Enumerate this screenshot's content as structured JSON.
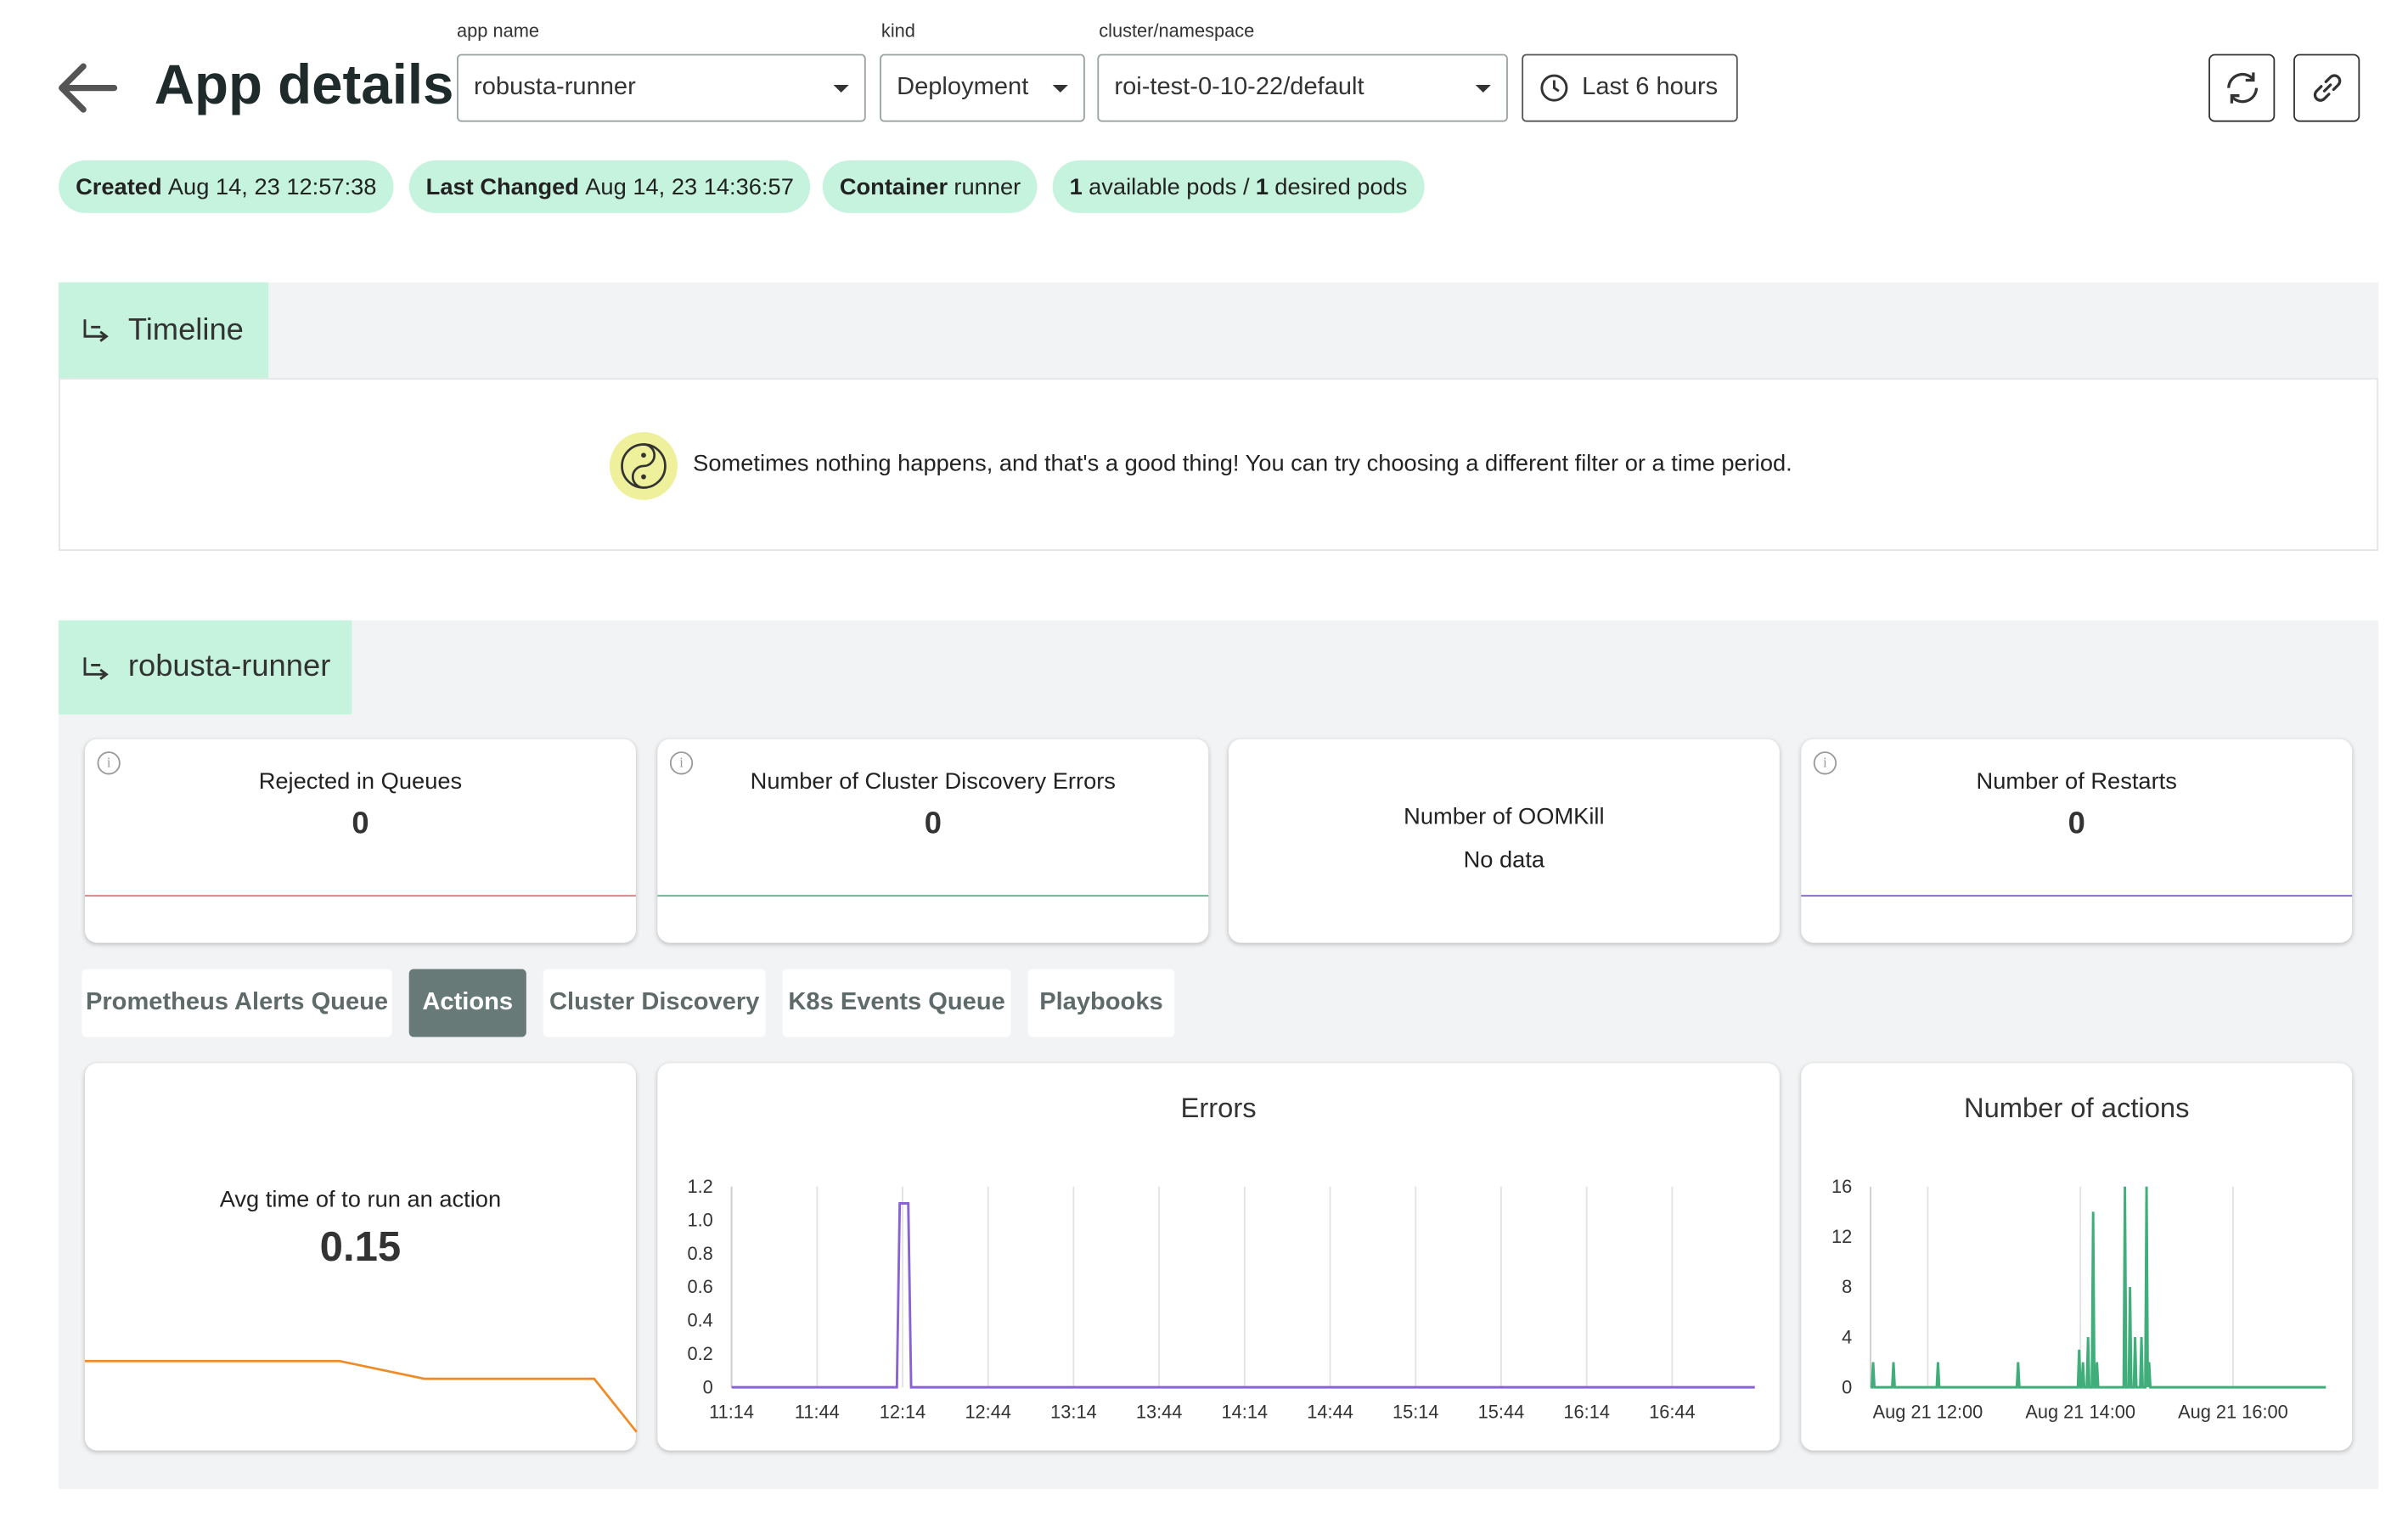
{
  "header": {
    "title": "App details",
    "filters": [
      {
        "label": "app name",
        "value": "robusta-runner"
      },
      {
        "label": "kind",
        "value": "Deployment"
      },
      {
        "label": "cluster/namespace",
        "value": "roi-test-0-10-22/default"
      }
    ],
    "time_range": "Last 6 hours"
  },
  "chips": [
    {
      "key": "Created",
      "value": "Aug 14, 23 12:57:38"
    },
    {
      "key": "Last Changed",
      "value": "Aug 14, 23 14:36:57"
    },
    {
      "key": "Container",
      "value": "runner"
    }
  ],
  "pods": {
    "available": 1,
    "available_text": "available pods /",
    "desired": 1,
    "desired_text": "desired pods"
  },
  "timeline": {
    "title": "Timeline",
    "empty_message": "Sometimes nothing happens, and that's a good thing! You can try choosing a different filter or a time period."
  },
  "section": {
    "title": "robusta-runner"
  },
  "stats": [
    {
      "title": "Rejected in Queues",
      "value": 0,
      "color": "#e57373"
    },
    {
      "title": "Number of Cluster Discovery Errors",
      "value": 0,
      "color": "#4fb48a"
    },
    {
      "title": "Number of OOMKill",
      "value": "No data"
    },
    {
      "title": "Number of Restarts",
      "value": 0,
      "color": "#7b5cd6"
    }
  ],
  "tabs": [
    "Prometheus Alerts Queue",
    "Actions",
    "Cluster Discovery",
    "K8s Events Queue",
    "Playbooks"
  ],
  "active_tab": 1,
  "avg_action": {
    "title": "Avg time of to run an action",
    "value": 0.15,
    "sparkline": {
      "color": "#f08a24",
      "ylim": [
        0,
        0.3
      ],
      "values": [
        0.2,
        0.2,
        0.2,
        0.2,
        0.2,
        0.2,
        0.2,
        0.175,
        0.15,
        0.15,
        0.15,
        0.15,
        0.15,
        0
      ]
    }
  },
  "chart_data": [
    {
      "type": "line",
      "title": "Errors",
      "x": [
        "11:14",
        "12:12",
        "12:13",
        "12:16",
        "12:17",
        "17:13"
      ],
      "series": [
        {
          "color": "#8a63d2",
          "values": [
            0,
            0,
            1.1,
            1.1,
            0,
            0
          ]
        }
      ],
      "xlim": [
        "11:14",
        "17:13"
      ],
      "xticks": [
        "11:14",
        "11:44",
        "12:14",
        "12:44",
        "13:14",
        "13:44",
        "14:14",
        "14:44",
        "15:14",
        "15:44",
        "16:14",
        "16:44"
      ],
      "ylim": [
        0,
        1.2
      ],
      "yticks": [
        0,
        0.2,
        0.4,
        0.6,
        0.8,
        {
          "value": 1,
          "label": "1.0"
        },
        1.2
      ],
      "grid": "x"
    },
    {
      "type": "line",
      "title": "Number of actions",
      "x": [
        "Aug 21 11:15",
        "Aug 21 11:16",
        "Aug 21 11:17",
        "Aug 21 11:18",
        "Aug 21 11:32",
        "Aug 21 11:33",
        "Aug 21 11:34",
        "Aug 21 12:07",
        "Aug 21 12:08",
        "Aug 21 12:09",
        "Aug 21 13:10",
        "Aug 21 13:11",
        "Aug 21 13:12",
        "Aug 21 13:58",
        "Aug 21 13:59",
        "Aug 21 14:00",
        "Aug 21 14:01",
        "Aug 21 14:02",
        "Aug 21 14:03",
        "Aug 21 14:05",
        "Aug 21 14:06",
        "Aug 21 14:07",
        "Aug 21 14:09",
        "Aug 21 14:10",
        "Aug 21 14:11",
        "Aug 21 14:12",
        "Aug 21 14:13",
        "Aug 21 14:14",
        "Aug 21 14:34",
        "Aug 21 14:35",
        "Aug 21 14:36",
        "Aug 21 14:38",
        "Aug 21 14:39",
        "Aug 21 14:40",
        "Aug 21 14:42",
        "Aug 21 14:43",
        "Aug 21 14:44",
        "Aug 21 14:47",
        "Aug 21 14:48",
        "Aug 21 14:49",
        "Aug 21 14:51",
        "Aug 21 14:52",
        "Aug 21 14:53",
        "Aug 21 14:54",
        "Aug 21 14:55",
        "Aug 21 17:13"
      ],
      "series": [
        {
          "color": "#3fae7a",
          "values": [
            0,
            0,
            2,
            0,
            0,
            2,
            0,
            0,
            2,
            0,
            0,
            2,
            0,
            0,
            3,
            0,
            0,
            2,
            0,
            0,
            4,
            0,
            0,
            14,
            0,
            0,
            2,
            0,
            0,
            16,
            0,
            0,
            8,
            0,
            0,
            4,
            0,
            0,
            4,
            0,
            0,
            16,
            0,
            2,
            0,
            0
          ]
        }
      ],
      "xlim": [
        "Aug 21 11:15",
        "Aug 21 17:13"
      ],
      "xticks": [
        "Aug 21 12:00",
        "Aug 21 14:00",
        "Aug 21 16:00"
      ],
      "ylim": [
        0,
        16
      ],
      "yticks": [
        0,
        4,
        8,
        12,
        16
      ],
      "grid": "x"
    }
  ]
}
